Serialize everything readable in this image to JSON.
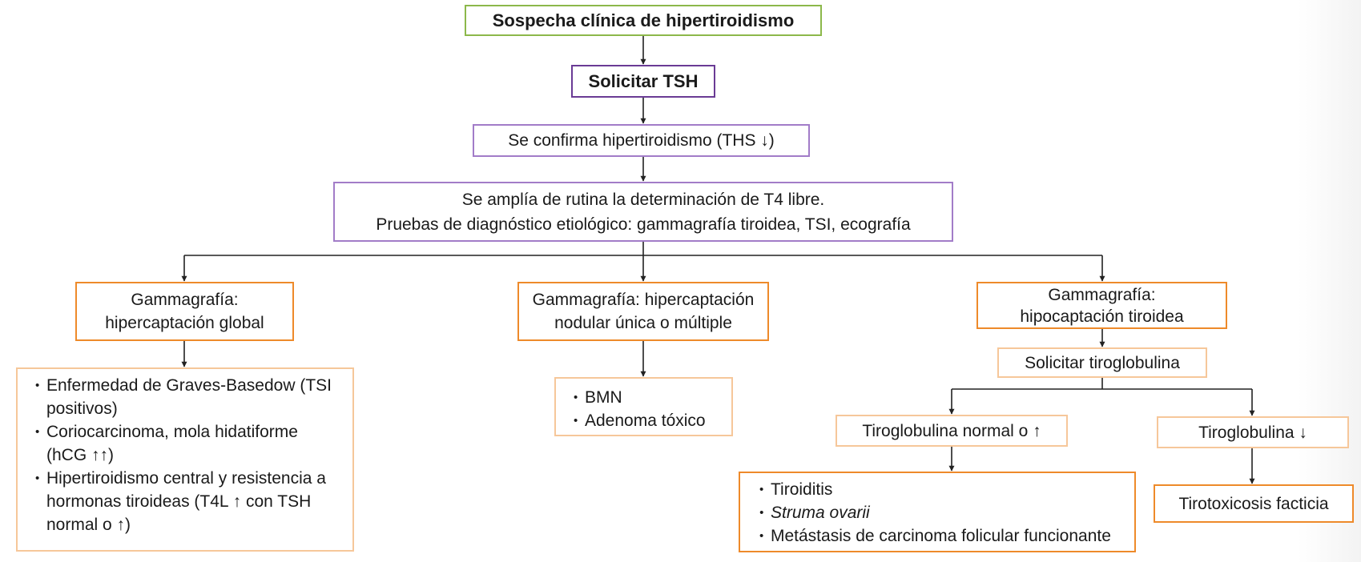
{
  "nodes": {
    "suspicion": "Sospecha clínica de hipertiroidismo",
    "request_tsh": "Solicitar TSH",
    "confirm": "Se confirma hipertiroidismo (THS ↓)",
    "extend_line1": "Se amplía de rutina la determinación de T4 libre.",
    "extend_line2": "Pruebas de diagnóstico etiológico: gammagrafía tiroidea, TSI, ecografía",
    "global_line1": "Gammagrafía:",
    "global_line2": "hipercaptación global",
    "global_causes": [
      "Enfermedad de Graves-Basedow (TSI positivos)",
      "Coriocarcinoma, mola hidatiforme (hCG ↑↑)",
      "Hipertiroidismo central y resistencia a hormonas tiroideas (T4L ↑ con TSH normal o ↑)"
    ],
    "nodular_line1": "Gammagrafía: hipercaptación",
    "nodular_line2": "nodular única o múltiple",
    "nodular_causes": [
      "BMN",
      "Adenoma tóxico"
    ],
    "hypo_line1": "Gammagrafía:",
    "hypo_line2": "hipocaptación tiroidea",
    "request_tg": "Solicitar tiroglobulina",
    "tg_normal": "Tiroglobulina normal o ↑",
    "tg_low": "Tiroglobulina ↓",
    "tg_normal_causes": [
      "Tiroiditis",
      "Struma ovarii",
      "Metástasis de carcinoma folicular funcionante"
    ],
    "factitious": "Tirotoxicosis facticia"
  },
  "colors": {
    "green_border": "#8cb84a",
    "dark_purple_border": "#6a3b95",
    "purple_border": "#a27cc8",
    "orange_border": "#ee8a2a",
    "light_orange_border": "#f6c79a",
    "arrow": "#222222"
  }
}
